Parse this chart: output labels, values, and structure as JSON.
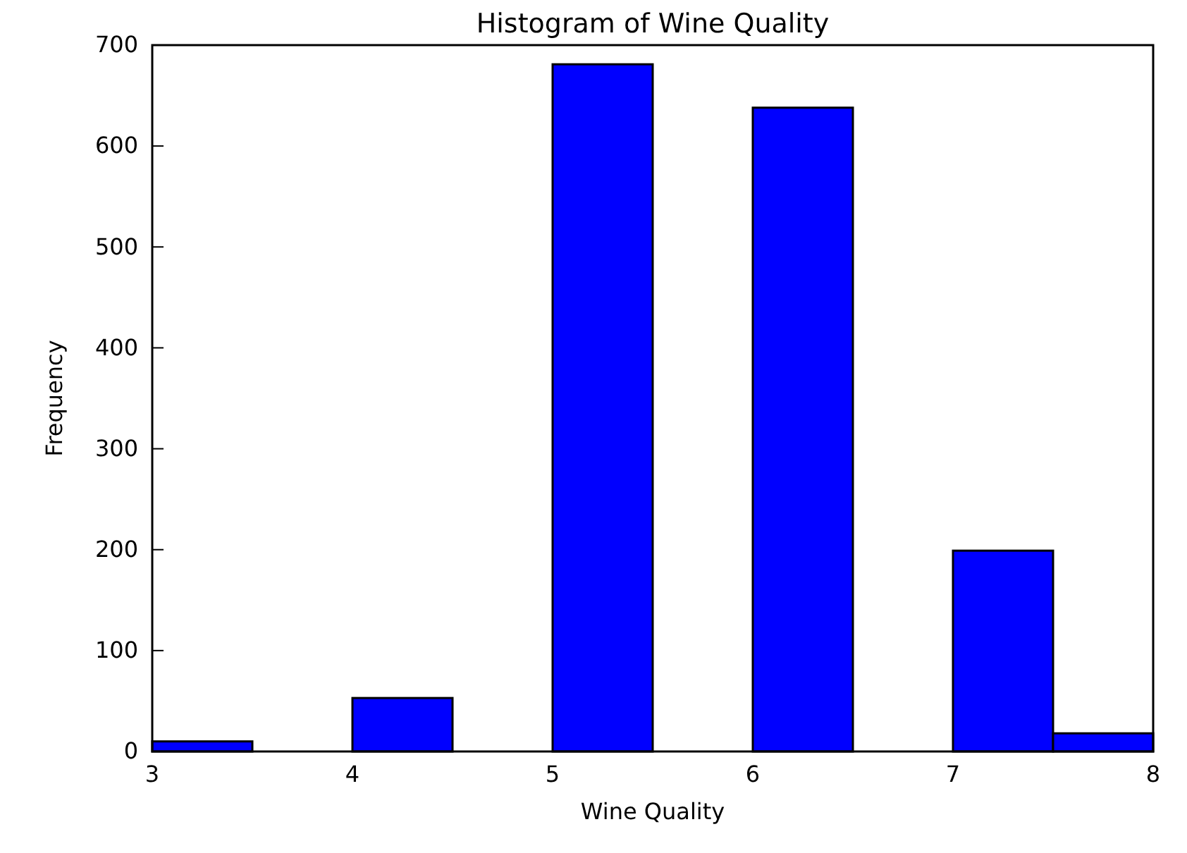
{
  "chart_data": {
    "type": "histogram",
    "title": "Histogram of Wine Quality",
    "xlabel": "Wine Quality",
    "ylabel": "Frequency",
    "bins": [
      3,
      3.5,
      4,
      4.5,
      5,
      5.5,
      6,
      6.5,
      7,
      7.5,
      8
    ],
    "values": [
      10,
      0,
      53,
      0,
      681,
      0,
      638,
      0,
      199,
      18
    ],
    "color": "#0000ff",
    "xlim": [
      3,
      8
    ],
    "xticks": [
      3,
      4,
      5,
      6,
      7,
      8
    ],
    "ylim": [
      0,
      700
    ],
    "yticks": [
      0,
      100,
      200,
      300,
      400,
      500,
      600,
      700
    ],
    "grid": false
  }
}
